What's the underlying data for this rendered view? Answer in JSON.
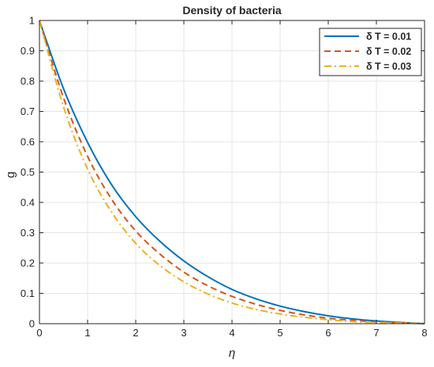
{
  "chart_data": {
    "type": "line",
    "title": "Density of bacteria",
    "xlabel": "η",
    "ylabel": "g",
    "xlim": [
      0,
      8
    ],
    "ylim": [
      0,
      1
    ],
    "xticks": [
      0,
      1,
      2,
      3,
      4,
      5,
      6,
      7,
      8
    ],
    "yticks": [
      0,
      0.1,
      0.2,
      0.3,
      0.4,
      0.5,
      0.6,
      0.7,
      0.8,
      0.9,
      1
    ],
    "xtick_labels": [
      "0",
      "1",
      "2",
      "3",
      "4",
      "5",
      "6",
      "7",
      "8"
    ],
    "ytick_labels": [
      "0",
      "0.1",
      "0.2",
      "0.3",
      "0.4",
      "0.5",
      "0.6",
      "0.7",
      "0.8",
      "0.9",
      "1"
    ],
    "grid": true,
    "legend_position": "top-right",
    "x": [
      0,
      0.5,
      1,
      1.5,
      2,
      2.5,
      3,
      3.5,
      4,
      4.5,
      5,
      5.5,
      6,
      6.5,
      7,
      7.5,
      8
    ],
    "series": [
      {
        "name": "δ T = 0.01",
        "color": "#0072BD",
        "dash": "solid",
        "values": [
          1.0,
          0.775,
          0.598,
          0.458,
          0.353,
          0.272,
          0.207,
          0.155,
          0.113,
          0.082,
          0.058,
          0.04,
          0.026,
          0.016,
          0.009,
          0.004,
          0.0
        ]
      },
      {
        "name": "δ T = 0.02",
        "color": "#D95319",
        "dash": "dashed",
        "values": [
          1.0,
          0.745,
          0.552,
          0.41,
          0.306,
          0.23,
          0.17,
          0.125,
          0.09,
          0.064,
          0.044,
          0.029,
          0.018,
          0.011,
          0.006,
          0.003,
          0.0
        ]
      },
      {
        "name": "δ T = 0.03",
        "color": "#EDB120",
        "dash": "dashdot",
        "values": [
          1.0,
          0.715,
          0.51,
          0.368,
          0.265,
          0.192,
          0.138,
          0.098,
          0.068,
          0.047,
          0.032,
          0.021,
          0.013,
          0.007,
          0.004,
          0.002,
          0.0
        ]
      }
    ]
  }
}
